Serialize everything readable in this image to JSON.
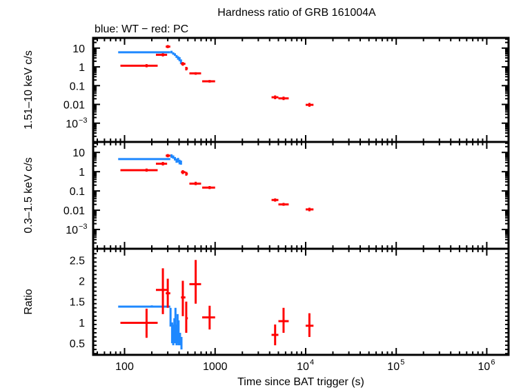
{
  "chart_data": [
    {
      "type": "scatter",
      "panel": "hard",
      "title": "Hardness ratio of GRB 161004A",
      "subtitle": "blue: WT − red: PC",
      "ylabel": "1.51–10 keV c/s",
      "yscale": "log",
      "ylim": [
        0.0001,
        35
      ],
      "yticks": [
        {
          "v": 10,
          "label": "10"
        },
        {
          "v": 1,
          "label": "1"
        },
        {
          "v": 0.1,
          "label": "0.1"
        },
        {
          "v": 0.01,
          "label": "0.01"
        },
        {
          "v": 0.001,
          "label": "10",
          "sup": "−3"
        }
      ],
      "series": [
        {
          "name": "WT",
          "color": "#1e88ff",
          "points": [
            {
              "x": 200,
              "xlo": 85,
              "xhi": 320,
              "y": 6.0,
              "ylo": 5.6,
              "yhi": 6.4
            },
            {
              "x": 330,
              "xlo": 322,
              "xhi": 338,
              "y": 6.2,
              "ylo": 5.2,
              "yhi": 7.2
            },
            {
              "x": 345,
              "xlo": 338,
              "xhi": 352,
              "y": 5.2,
              "ylo": 4.4,
              "yhi": 6.0
            },
            {
              "x": 360,
              "xlo": 352,
              "xhi": 368,
              "y": 4.5,
              "ylo": 3.8,
              "yhi": 5.3
            },
            {
              "x": 375,
              "xlo": 368,
              "xhi": 382,
              "y": 3.6,
              "ylo": 3.0,
              "yhi": 4.3
            },
            {
              "x": 390,
              "xlo": 382,
              "xhi": 398,
              "y": 3.0,
              "ylo": 2.4,
              "yhi": 3.7
            },
            {
              "x": 405,
              "xlo": 398,
              "xhi": 412,
              "y": 2.6,
              "ylo": 2.0,
              "yhi": 3.3
            },
            {
              "x": 420,
              "xlo": 412,
              "xhi": 428,
              "y": 1.9,
              "ylo": 1.4,
              "yhi": 2.5
            }
          ]
        },
        {
          "name": "PC",
          "color": "#ff0000",
          "points": [
            {
              "x": 175,
              "xlo": 90,
              "xhi": 232,
              "y": 1.15,
              "ylo": 0.95,
              "yhi": 1.4
            },
            {
              "x": 265,
              "xlo": 222,
              "xhi": 295,
              "y": 4.4,
              "ylo": 3.6,
              "yhi": 5.3
            },
            {
              "x": 300,
              "xlo": 285,
              "xhi": 320,
              "y": 12,
              "ylo": 10,
              "yhi": 14.5
            },
            {
              "x": 440,
              "xlo": 420,
              "xhi": 470,
              "y": 1.45,
              "ylo": 1.15,
              "yhi": 1.8
            },
            {
              "x": 480,
              "xlo": 470,
              "xhi": 500,
              "y": 0.82,
              "ylo": 0.65,
              "yhi": 1.0
            },
            {
              "x": 610,
              "xlo": 520,
              "xhi": 700,
              "y": 0.45,
              "ylo": 0.38,
              "yhi": 0.52
            },
            {
              "x": 870,
              "xlo": 720,
              "xhi": 1000,
              "y": 0.17,
              "ylo": 0.145,
              "yhi": 0.2
            },
            {
              "x": 4600,
              "xlo": 4200,
              "xhi": 5000,
              "y": 0.024,
              "ylo": 0.019,
              "yhi": 0.03
            },
            {
              "x": 5700,
              "xlo": 5000,
              "xhi": 6500,
              "y": 0.021,
              "ylo": 0.017,
              "yhi": 0.026
            },
            {
              "x": 11000,
              "xlo": 10000,
              "xhi": 12200,
              "y": 0.0095,
              "ylo": 0.0075,
              "yhi": 0.012
            }
          ]
        }
      ]
    },
    {
      "type": "scatter",
      "panel": "soft",
      "ylabel": "0.3–1.5 keV c/s",
      "yscale": "log",
      "ylim": [
        0.0001,
        35
      ],
      "yticks": [
        {
          "v": 10,
          "label": "10"
        },
        {
          "v": 1,
          "label": "1"
        },
        {
          "v": 0.1,
          "label": "0.1"
        },
        {
          "v": 0.01,
          "label": "0.01"
        },
        {
          "v": 0.001,
          "label": "10",
          "sup": "−3"
        }
      ],
      "series": [
        {
          "name": "WT",
          "color": "#1e88ff",
          "points": [
            {
              "x": 200,
              "xlo": 85,
              "xhi": 320,
              "y": 4.5,
              "ylo": 4.2,
              "yhi": 4.8
            },
            {
              "x": 330,
              "xlo": 322,
              "xhi": 338,
              "y": 6.5,
              "ylo": 5.2,
              "yhi": 8.0
            },
            {
              "x": 345,
              "xlo": 338,
              "xhi": 352,
              "y": 5.8,
              "ylo": 4.7,
              "yhi": 7.0
            },
            {
              "x": 360,
              "xlo": 352,
              "xhi": 368,
              "y": 4.8,
              "ylo": 3.8,
              "yhi": 5.8
            },
            {
              "x": 375,
              "xlo": 368,
              "xhi": 382,
              "y": 3.8,
              "ylo": 2.9,
              "yhi": 4.8
            },
            {
              "x": 390,
              "xlo": 382,
              "xhi": 398,
              "y": 4.0,
              "ylo": 3.0,
              "yhi": 5.2
            },
            {
              "x": 405,
              "xlo": 398,
              "xhi": 412,
              "y": 3.2,
              "ylo": 2.4,
              "yhi": 4.2
            },
            {
              "x": 420,
              "xlo": 412,
              "xhi": 428,
              "y": 3.0,
              "ylo": 2.3,
              "yhi": 3.8
            }
          ]
        },
        {
          "name": "PC",
          "color": "#ff0000",
          "points": [
            {
              "x": 175,
              "xlo": 90,
              "xhi": 232,
              "y": 1.2,
              "ylo": 1.0,
              "yhi": 1.45
            },
            {
              "x": 265,
              "xlo": 222,
              "xhi": 295,
              "y": 2.6,
              "ylo": 2.1,
              "yhi": 3.2
            },
            {
              "x": 300,
              "xlo": 285,
              "xhi": 320,
              "y": 6.8,
              "ylo": 5.6,
              "yhi": 8.2
            },
            {
              "x": 440,
              "xlo": 420,
              "xhi": 470,
              "y": 0.95,
              "ylo": 0.75,
              "yhi": 1.2
            },
            {
              "x": 480,
              "xlo": 470,
              "xhi": 500,
              "y": 0.78,
              "ylo": 0.62,
              "yhi": 0.98
            },
            {
              "x": 610,
              "xlo": 520,
              "xhi": 700,
              "y": 0.24,
              "ylo": 0.2,
              "yhi": 0.3
            },
            {
              "x": 870,
              "xlo": 720,
              "xhi": 1000,
              "y": 0.15,
              "ylo": 0.125,
              "yhi": 0.18
            },
            {
              "x": 4600,
              "xlo": 4200,
              "xhi": 5000,
              "y": 0.034,
              "ylo": 0.028,
              "yhi": 0.041
            },
            {
              "x": 5700,
              "xlo": 5000,
              "xhi": 6500,
              "y": 0.02,
              "ylo": 0.017,
              "yhi": 0.024
            },
            {
              "x": 11000,
              "xlo": 10000,
              "xhi": 12200,
              "y": 0.011,
              "ylo": 0.0088,
              "yhi": 0.0135
            }
          ]
        }
      ]
    },
    {
      "type": "scatter",
      "panel": "ratio",
      "ylabel": "Ratio",
      "yscale": "linear",
      "ylim": [
        0.22,
        2.77
      ],
      "yticks": [
        {
          "v": 2.5,
          "label": "2.5"
        },
        {
          "v": 2,
          "label": "2"
        },
        {
          "v": 1.5,
          "label": "1.5"
        },
        {
          "v": 1,
          "label": "1"
        },
        {
          "v": 0.5,
          "label": "0.5"
        }
      ],
      "xlabel": "Time since BAT trigger (s)",
      "xscale": "log",
      "xlim": [
        45,
        1740000
      ],
      "xticks": [
        {
          "v": 100,
          "label": "100"
        },
        {
          "v": 1000,
          "label": "1000"
        },
        {
          "v": 10000,
          "label": "10",
          "sup": "4"
        },
        {
          "v": 100000,
          "label": "10",
          "sup": "5"
        },
        {
          "v": 1000000,
          "label": "10",
          "sup": "6"
        }
      ],
      "series": [
        {
          "name": "WT",
          "color": "#1e88ff",
          "points": [
            {
              "x": 200,
              "xlo": 85,
              "xhi": 320,
              "y": 1.38,
              "ylo": 1.36,
              "yhi": 1.41
            },
            {
              "x": 322,
              "xlo": 318,
              "xhi": 326,
              "y": 1.1,
              "ylo": 0.9,
              "yhi": 1.35
            },
            {
              "x": 335,
              "xlo": 330,
              "xhi": 340,
              "y": 0.75,
              "ylo": 0.5,
              "yhi": 1.0
            },
            {
              "x": 345,
              "xlo": 340,
              "xhi": 350,
              "y": 0.6,
              "ylo": 0.45,
              "yhi": 0.95
            },
            {
              "x": 355,
              "xlo": 350,
              "xhi": 360,
              "y": 0.85,
              "ylo": 0.5,
              "yhi": 1.1
            },
            {
              "x": 365,
              "xlo": 360,
              "xhi": 370,
              "y": 0.8,
              "ylo": 0.5,
              "yhi": 1.35
            },
            {
              "x": 375,
              "xlo": 370,
              "xhi": 380,
              "y": 0.65,
              "ylo": 0.45,
              "yhi": 0.95
            },
            {
              "x": 385,
              "xlo": 380,
              "xhi": 390,
              "y": 0.75,
              "ylo": 0.5,
              "yhi": 1.2
            },
            {
              "x": 395,
              "xlo": 390,
              "xhi": 400,
              "y": 0.7,
              "ylo": 0.45,
              "yhi": 1.05
            },
            {
              "x": 410,
              "xlo": 402,
              "xhi": 418,
              "y": 0.6,
              "ylo": 0.45,
              "yhi": 0.75
            },
            {
              "x": 425,
              "xlo": 418,
              "xhi": 432,
              "y": 0.5,
              "ylo": 0.35,
              "yhi": 0.65
            }
          ]
        },
        {
          "name": "PC",
          "color": "#ff0000",
          "points": [
            {
              "x": 175,
              "xlo": 90,
              "xhi": 232,
              "y": 0.99,
              "ylo": 0.63,
              "yhi": 1.33
            },
            {
              "x": 265,
              "xlo": 222,
              "xhi": 295,
              "y": 1.78,
              "ylo": 1.2,
              "yhi": 2.3
            },
            {
              "x": 300,
              "xlo": 285,
              "xhi": 320,
              "y": 1.7,
              "ylo": 1.35,
              "yhi": 2.05
            },
            {
              "x": 440,
              "xlo": 420,
              "xhi": 470,
              "y": 1.6,
              "ylo": 1.15,
              "yhi": 2.0
            },
            {
              "x": 480,
              "xlo": 470,
              "xhi": 500,
              "y": 1.1,
              "ylo": 0.75,
              "yhi": 1.5
            },
            {
              "x": 610,
              "xlo": 520,
              "xhi": 700,
              "y": 1.92,
              "ylo": 1.45,
              "yhi": 2.5
            },
            {
              "x": 870,
              "xlo": 720,
              "xhi": 1000,
              "y": 1.12,
              "ylo": 0.83,
              "yhi": 1.4
            },
            {
              "x": 4600,
              "xlo": 4200,
              "xhi": 5000,
              "y": 0.7,
              "ylo": 0.45,
              "yhi": 0.95
            },
            {
              "x": 5700,
              "xlo": 5000,
              "xhi": 6500,
              "y": 1.03,
              "ylo": 0.75,
              "yhi": 1.35
            },
            {
              "x": 11000,
              "xlo": 10000,
              "xhi": 12200,
              "y": 0.92,
              "ylo": 0.65,
              "yhi": 1.22
            }
          ]
        }
      ]
    }
  ]
}
